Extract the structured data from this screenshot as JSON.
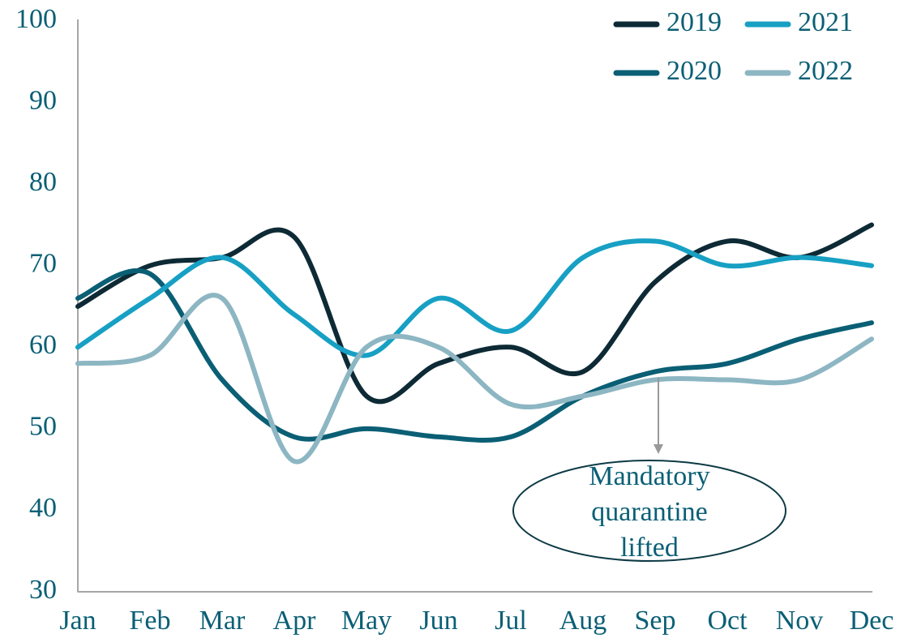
{
  "chart_data": {
    "type": "line",
    "categories": [
      "Jan",
      "Feb",
      "Mar",
      "Apr",
      "May",
      "Jun",
      "Jul",
      "Aug",
      "Sep",
      "Oct",
      "Nov",
      "Dec"
    ],
    "series": [
      {
        "name": "2019",
        "color": "#0d2a35",
        "values": [
          65,
          70,
          71,
          73.5,
          54,
          58,
          60,
          57,
          68,
          73,
          71,
          75
        ]
      },
      {
        "name": "2020",
        "color": "#0a5f75",
        "values": [
          66,
          69,
          56,
          49,
          50,
          49,
          49,
          54,
          57,
          58,
          61,
          63
        ]
      },
      {
        "name": "2021",
        "color": "#17a0c4",
        "values": [
          60,
          66,
          71,
          64,
          59,
          66,
          62,
          71,
          73,
          70,
          71,
          70
        ]
      },
      {
        "name": "2022",
        "color": "#8db6c3",
        "values": [
          58,
          59,
          66,
          46,
          60,
          60,
          53,
          54,
          56,
          56,
          56,
          61
        ]
      }
    ],
    "ylim": [
      30,
      100
    ],
    "yticks": [
      30,
      40,
      50,
      60,
      70,
      80,
      90,
      100
    ],
    "grid": false,
    "legend": "top-right",
    "annotation": {
      "lines": [
        "Mandatory",
        "quarantine",
        "lifted"
      ],
      "category": "Sep"
    }
  }
}
